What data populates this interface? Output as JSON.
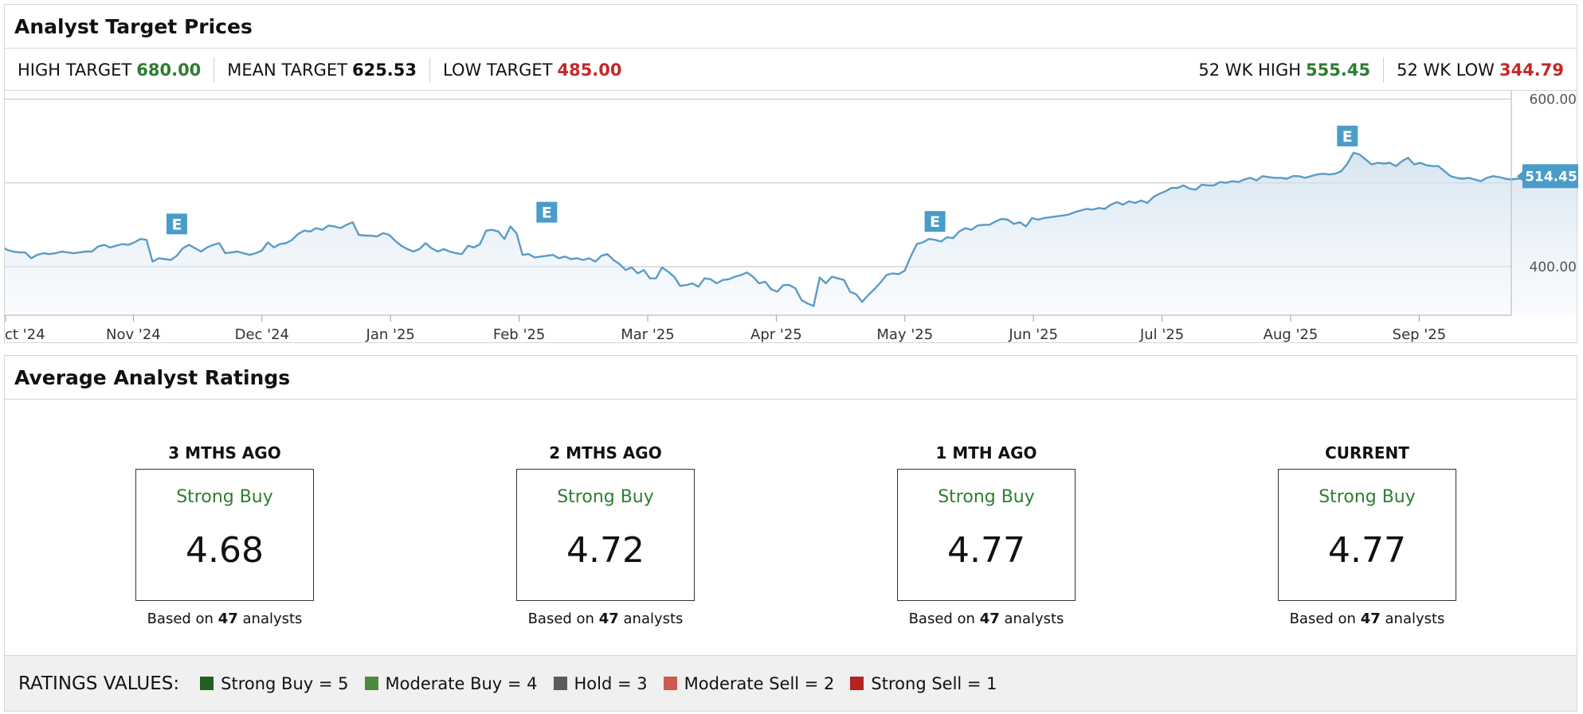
{
  "targets": {
    "title": "Analyst Target Prices",
    "high_label": "HIGH TARGET",
    "high_value": "680.00",
    "mean_label": "MEAN TARGET",
    "mean_value": "625.53",
    "low_label": "LOW TARGET",
    "low_value": "485.00",
    "wk_high_label": "52 WK HIGH",
    "wk_high_value": "555.45",
    "wk_low_label": "52 WK LOW",
    "wk_low_value": "344.79"
  },
  "chart_data": {
    "type": "area",
    "x_tick_labels": [
      "ct '24",
      "Nov '24",
      "Dec '24",
      "Jan '25",
      "Feb '25",
      "Mar '25",
      "Apr '25",
      "May '25",
      "Jun '25",
      "Jul '25",
      "Aug '25",
      "Sep '25"
    ],
    "y_tick_labels": [
      "600.00",
      "500.00",
      "400.00"
    ],
    "ylim": [
      342,
      610
    ],
    "grid": true,
    "last_price_label": "514.45",
    "earnings_marker_label": "E",
    "earnings_markers": [
      {
        "x": 26,
        "y": 431
      },
      {
        "x": 87,
        "y": 445
      },
      {
        "x": 151,
        "y": 434
      },
      {
        "x": 219,
        "y": 536
      }
    ],
    "series": [
      {
        "points": [
          [
            -5,
            427
          ],
          [
            -4,
            428
          ],
          [
            -3,
            425
          ],
          [
            -2,
            420
          ],
          [
            -1,
            418
          ],
          [
            0,
            417
          ],
          [
            1,
            417
          ],
          [
            2,
            410
          ],
          [
            3,
            414
          ],
          [
            4,
            416
          ],
          [
            5,
            415
          ],
          [
            6,
            416
          ],
          [
            7,
            418
          ],
          [
            8,
            417
          ],
          [
            9,
            416
          ],
          [
            10,
            417
          ],
          [
            11,
            418
          ],
          [
            12,
            418
          ],
          [
            13,
            424
          ],
          [
            14,
            426
          ],
          [
            15,
            423
          ],
          [
            16,
            425
          ],
          [
            17,
            427
          ],
          [
            18,
            426
          ],
          [
            19,
            429
          ],
          [
            20,
            433
          ],
          [
            21,
            432
          ],
          [
            22,
            406
          ],
          [
            23,
            410
          ],
          [
            24,
            409
          ],
          [
            25,
            408
          ],
          [
            26,
            413
          ],
          [
            27,
            422
          ],
          [
            28,
            426
          ],
          [
            29,
            422
          ],
          [
            30,
            418
          ],
          [
            31,
            423
          ],
          [
            32,
            426
          ],
          [
            33,
            428
          ],
          [
            34,
            416
          ],
          [
            35,
            417
          ],
          [
            36,
            418
          ],
          [
            37,
            416
          ],
          [
            38,
            414
          ],
          [
            39,
            416
          ],
          [
            40,
            419
          ],
          [
            41,
            429
          ],
          [
            42,
            423
          ],
          [
            43,
            427
          ],
          [
            44,
            428
          ],
          [
            45,
            432
          ],
          [
            46,
            439
          ],
          [
            47,
            443
          ],
          [
            48,
            442
          ],
          [
            49,
            446
          ],
          [
            50,
            444
          ],
          [
            51,
            449
          ],
          [
            52,
            448
          ],
          [
            53,
            446
          ],
          [
            54,
            450
          ],
          [
            55,
            453
          ],
          [
            56,
            438
          ],
          [
            57,
            437
          ],
          [
            58,
            437
          ],
          [
            59,
            436
          ],
          [
            60,
            440
          ],
          [
            61,
            438
          ],
          [
            62,
            431
          ],
          [
            63,
            425
          ],
          [
            64,
            421
          ],
          [
            65,
            418
          ],
          [
            66,
            421
          ],
          [
            67,
            428
          ],
          [
            68,
            422
          ],
          [
            69,
            418
          ],
          [
            70,
            421
          ],
          [
            71,
            418
          ],
          [
            72,
            416
          ],
          [
            73,
            415
          ],
          [
            74,
            425
          ],
          [
            75,
            423
          ],
          [
            76,
            427
          ],
          [
            77,
            443
          ],
          [
            78,
            444
          ],
          [
            79,
            442
          ],
          [
            80,
            433
          ],
          [
            81,
            448
          ],
          [
            82,
            440
          ],
          [
            83,
            414
          ],
          [
            84,
            415
          ],
          [
            85,
            411
          ],
          [
            86,
            412
          ],
          [
            87,
            413
          ],
          [
            88,
            414
          ],
          [
            89,
            410
          ],
          [
            90,
            412
          ],
          [
            91,
            409
          ],
          [
            92,
            410
          ],
          [
            93,
            408
          ],
          [
            94,
            410
          ],
          [
            95,
            406
          ],
          [
            96,
            413
          ],
          [
            97,
            415
          ],
          [
            98,
            408
          ],
          [
            99,
            403
          ],
          [
            100,
            396
          ],
          [
            101,
            399
          ],
          [
            102,
            392
          ],
          [
            103,
            396
          ],
          [
            104,
            386
          ],
          [
            105,
            386
          ],
          [
            106,
            399
          ],
          [
            107,
            394
          ],
          [
            108,
            388
          ],
          [
            109,
            377
          ],
          [
            110,
            378
          ],
          [
            111,
            380
          ],
          [
            112,
            376
          ],
          [
            113,
            386
          ],
          [
            114,
            385
          ],
          [
            115,
            380
          ],
          [
            116,
            384
          ],
          [
            117,
            385
          ],
          [
            118,
            388
          ],
          [
            119,
            390
          ],
          [
            120,
            393
          ],
          [
            121,
            388
          ],
          [
            122,
            380
          ],
          [
            123,
            382
          ],
          [
            124,
            373
          ],
          [
            125,
            370
          ],
          [
            126,
            378
          ],
          [
            127,
            378
          ],
          [
            128,
            374
          ],
          [
            129,
            360
          ],
          [
            130,
            356
          ],
          [
            131,
            353
          ],
          [
            132,
            387
          ],
          [
            133,
            380
          ],
          [
            134,
            388
          ],
          [
            135,
            386
          ],
          [
            136,
            384
          ],
          [
            137,
            370
          ],
          [
            138,
            367
          ],
          [
            139,
            358
          ],
          [
            140,
            366
          ],
          [
            141,
            373
          ],
          [
            142,
            381
          ],
          [
            143,
            390
          ],
          [
            144,
            392
          ],
          [
            145,
            391
          ],
          [
            146,
            395
          ],
          [
            147,
            412
          ],
          [
            148,
            427
          ],
          [
            149,
            429
          ],
          [
            150,
            433
          ],
          [
            151,
            432
          ],
          [
            152,
            430
          ],
          [
            153,
            435
          ],
          [
            154,
            434
          ],
          [
            155,
            442
          ],
          [
            156,
            446
          ],
          [
            157,
            444
          ],
          [
            158,
            449
          ],
          [
            159,
            450
          ],
          [
            160,
            450
          ],
          [
            161,
            454
          ],
          [
            162,
            457
          ],
          [
            163,
            456
          ],
          [
            164,
            451
          ],
          [
            165,
            453
          ],
          [
            166,
            448
          ],
          [
            167,
            458
          ],
          [
            168,
            456
          ],
          [
            169,
            458
          ],
          [
            170,
            459
          ],
          [
            171,
            460
          ],
          [
            172,
            461
          ],
          [
            173,
            462
          ],
          [
            174,
            465
          ],
          [
            175,
            467
          ],
          [
            176,
            469
          ],
          [
            177,
            468
          ],
          [
            178,
            470
          ],
          [
            179,
            469
          ],
          [
            180,
            474
          ],
          [
            181,
            477
          ],
          [
            182,
            474
          ],
          [
            183,
            478
          ],
          [
            184,
            476
          ],
          [
            185,
            479
          ],
          [
            186,
            476
          ],
          [
            187,
            483
          ],
          [
            188,
            487
          ],
          [
            189,
            490
          ],
          [
            190,
            494
          ],
          [
            191,
            494
          ],
          [
            192,
            497
          ],
          [
            193,
            493
          ],
          [
            194,
            492
          ],
          [
            195,
            498
          ],
          [
            196,
            497
          ],
          [
            197,
            497
          ],
          [
            198,
            501
          ],
          [
            199,
            500
          ],
          [
            200,
            502
          ],
          [
            201,
            501
          ],
          [
            202,
            504
          ],
          [
            203,
            506
          ],
          [
            204,
            503
          ],
          [
            205,
            508
          ],
          [
            206,
            507
          ],
          [
            207,
            506
          ],
          [
            208,
            506
          ],
          [
            209,
            505
          ],
          [
            210,
            508
          ],
          [
            211,
            508
          ],
          [
            212,
            506
          ],
          [
            213,
            508
          ],
          [
            214,
            510
          ],
          [
            215,
            511
          ],
          [
            216,
            510
          ],
          [
            217,
            511
          ],
          [
            218,
            514
          ],
          [
            219,
            523
          ],
          [
            220,
            536
          ],
          [
            221,
            534
          ],
          [
            222,
            528
          ],
          [
            223,
            522
          ],
          [
            224,
            524
          ],
          [
            225,
            523
          ],
          [
            226,
            524
          ],
          [
            227,
            520
          ],
          [
            228,
            526
          ],
          [
            229,
            530
          ],
          [
            230,
            522
          ],
          [
            231,
            524
          ],
          [
            232,
            521
          ],
          [
            233,
            520
          ],
          [
            234,
            520
          ],
          [
            235,
            514
          ],
          [
            236,
            508
          ],
          [
            237,
            506
          ],
          [
            238,
            505
          ],
          [
            239,
            506
          ],
          [
            240,
            504
          ],
          [
            241,
            502
          ],
          [
            242,
            506
          ],
          [
            243,
            508
          ],
          [
            244,
            507
          ],
          [
            245,
            505
          ],
          [
            246,
            504
          ],
          [
            247,
            505
          ],
          [
            248,
            505
          ],
          [
            249,
            496
          ],
          [
            250,
            500
          ],
          [
            251,
            499
          ],
          [
            252,
            501
          ],
          [
            253,
            502
          ],
          [
            254,
            502
          ],
          [
            255,
            504
          ],
          [
            256,
            510
          ],
          [
            257,
            512
          ],
          [
            258,
            507
          ],
          [
            259,
            507
          ],
          [
            260,
            506
          ],
          [
            261,
            511
          ],
          [
            262,
            508
          ]
        ]
      }
    ]
  },
  "ratings": {
    "title": "Average Analyst Ratings",
    "basis_prefix": "Based on",
    "basis_suffix": "analysts",
    "columns": [
      {
        "period": "3 MTHS AGO",
        "label": "Strong Buy",
        "score": "4.68",
        "analysts": "47"
      },
      {
        "period": "2 MTHS AGO",
        "label": "Strong Buy",
        "score": "4.72",
        "analysts": "47"
      },
      {
        "period": "1 MTH AGO",
        "label": "Strong Buy",
        "score": "4.77",
        "analysts": "47"
      },
      {
        "period": "CURRENT",
        "label": "Strong Buy",
        "score": "4.77",
        "analysts": "47"
      }
    ]
  },
  "legend": {
    "title": "RATINGS VALUES:",
    "items": [
      {
        "label": "Strong Buy = 5",
        "color": "#245f22"
      },
      {
        "label": "Moderate Buy = 4",
        "color": "#4c8b3f"
      },
      {
        "label": "Hold = 3",
        "color": "#5b5b5b"
      },
      {
        "label": "Moderate Sell = 2",
        "color": "#cd5a52"
      },
      {
        "label": "Strong Sell = 1",
        "color": "#b3241f"
      }
    ]
  },
  "colors": {
    "line": "#5b9bc6",
    "marker": "#4a9cc9",
    "grid": "#cccccc"
  }
}
